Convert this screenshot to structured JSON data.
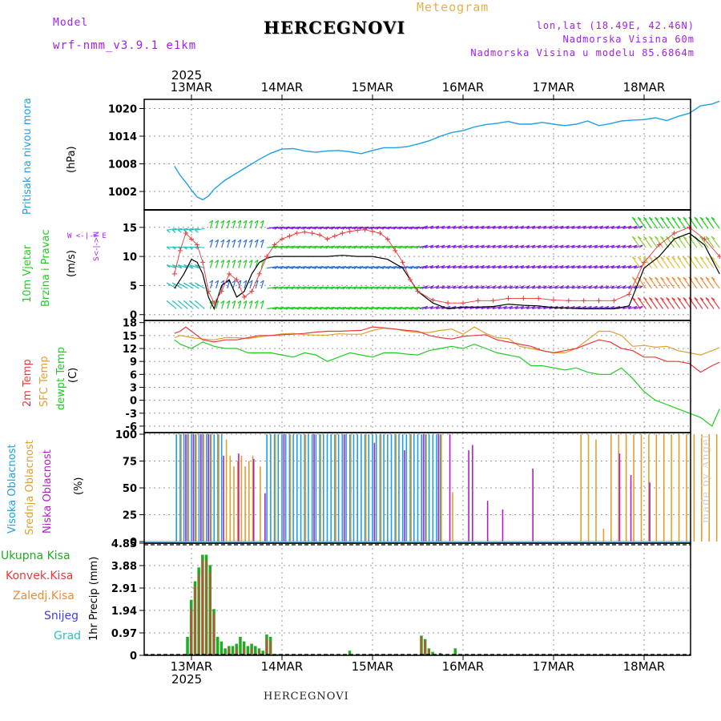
{
  "header": {
    "model_label": "Model",
    "model_name": "wrf-nmm_v3.9.1 e1km",
    "title": "Meteogram",
    "station": "HERCEGNOVI",
    "lonlat": "lon,lat (18.49E, 42.46N)",
    "elevation": "Nadmorska Visina 60m",
    "model_elevation": "Nadmorska Visina u modelu 85.6864m"
  },
  "footer": {
    "station": "HERCEGNOVI",
    "watermark": "made by Angel"
  },
  "dates": {
    "year": "2025",
    "labels": [
      "13MAR",
      "14MAR",
      "15MAR",
      "16MAR",
      "17MAR",
      "18MAR"
    ]
  },
  "colors": {
    "pressure": "#1ea0e6",
    "t2m": "#e83a3a",
    "tsfc": "#e0a030",
    "dewpt": "#22cc22",
    "wind_speed": "#000000",
    "gust": "#e83a3a",
    "cloud_high": "#1ea0e6",
    "cloud_mid": "#e0a030",
    "cloud_low": "#b020c0",
    "precip_total": "#22aa22",
    "precip_conv": "#e83a3a",
    "precip_frz": "#f08a30",
    "precip_snow": "#4040e0",
    "precip_hail": "#30c0c0"
  },
  "panels": {
    "pressure": {
      "label1": "Pritisak na nivou mora",
      "unit": "(hPa)",
      "ticks": [
        "1002",
        "1008",
        "1014",
        "1020"
      ]
    },
    "wind": {
      "label1": "10m Vjetar",
      "label2": "Brzina i Pravac",
      "unit": "(m/s)",
      "ticks": [
        "0",
        "5",
        "10",
        "15"
      ],
      "compass": "W <-|-> E",
      "compass_v": "S<-|->N"
    },
    "temp": {
      "label1": "2m Temp",
      "label2": "SFC Temp",
      "label3": "dewpt Temp",
      "unit": "(C)",
      "ticks": [
        "-6",
        "-3",
        "0",
        "3",
        "6",
        "9",
        "12",
        "15",
        "18"
      ]
    },
    "cloud": {
      "label1": "Visoka Oblacnost",
      "label2": "Srednja Oblacnost",
      "label3": "Niska Oblacnost",
      "unit": "(%)",
      "ticks": [
        "0",
        "25",
        "50",
        "75",
        "100"
      ]
    },
    "precip": {
      "label": "1hr Precip (mm)",
      "ticks": [
        "0",
        "0.97",
        "1.94",
        "2.91",
        "3.88",
        "4.85"
      ],
      "legend": [
        "Ukupna Kisa",
        "Konvek.Kisa",
        "Zaledj.Kisa",
        "Snijeg",
        "Grad"
      ]
    }
  },
  "chart_data": [
    {
      "type": "line",
      "name": "pressure",
      "x_unit": "hours from 13MAR 00",
      "ylim": [
        998,
        1022
      ],
      "x": [
        -4.5,
        -3,
        -1.5,
        0,
        1.5,
        3,
        4.5,
        6,
        9,
        12,
        15,
        18,
        21,
        24,
        27,
        30,
        33,
        36,
        39,
        42,
        45,
        48,
        51,
        54,
        57,
        60,
        63,
        66,
        69,
        72,
        75,
        78,
        81,
        84,
        87,
        90,
        93,
        96,
        99,
        102,
        105,
        108,
        111,
        114,
        117,
        120,
        123,
        126,
        129,
        132,
        135,
        138,
        140
      ],
      "values": [
        1007.5,
        1005.5,
        1004,
        1002.3,
        1000.8,
        1000.2,
        1001,
        1002.5,
        1004.5,
        1006,
        1007.5,
        1009,
        1010.3,
        1011.2,
        1011.3,
        1010.8,
        1010.5,
        1010.8,
        1010.9,
        1010.6,
        1010.2,
        1010.9,
        1011.5,
        1011.5,
        1011.7,
        1012.3,
        1013,
        1014,
        1014.8,
        1015.2,
        1016,
        1016.5,
        1016.8,
        1017.2,
        1016.6,
        1016.6,
        1017,
        1016.6,
        1016.3,
        1016.6,
        1017.3,
        1016.3,
        1016.7,
        1017.3,
        1017.5,
        1017.6,
        1018,
        1017.4,
        1018.3,
        1019,
        1020.6,
        1021,
        1021.6
      ]
    },
    {
      "type": "line",
      "name": "wind",
      "ylim": [
        -1,
        18
      ],
      "series": [
        {
          "name": "speed",
          "x": [
            -4.5,
            -2,
            0,
            1.5,
            3,
            4.5,
            6,
            8,
            10,
            12,
            14,
            16,
            18,
            20,
            22,
            24,
            28,
            32,
            36,
            40,
            44,
            48,
            52,
            56,
            60,
            64,
            68,
            72,
            76,
            80,
            84,
            88,
            92,
            96,
            100,
            104,
            108,
            112,
            116,
            120,
            124,
            128,
            132,
            136,
            140
          ],
          "values": [
            4.5,
            7,
            9.5,
            9,
            7,
            3,
            1,
            5,
            6,
            3,
            4,
            7,
            9,
            9.7,
            10,
            10,
            10,
            10,
            10,
            10.2,
            10,
            10,
            9.5,
            8,
            4,
            2,
            1,
            1.3,
            1.3,
            1.4,
            1.8,
            1.6,
            1.5,
            1.2,
            1.1,
            1,
            1,
            1,
            1.5,
            8,
            10,
            13,
            14,
            12,
            7
          ]
        },
        {
          "name": "gust",
          "x": [
            -4.5,
            -3,
            -1.5,
            0,
            1.5,
            3,
            4.5,
            6,
            8,
            10,
            12,
            14,
            16,
            18,
            20,
            22,
            24,
            26,
            28,
            30,
            32,
            34,
            36,
            38,
            40,
            42,
            44,
            46,
            48,
            50,
            52,
            54,
            56,
            58,
            60,
            64,
            68,
            72,
            76,
            80,
            84,
            88,
            92,
            96,
            100,
            104,
            108,
            112,
            116,
            120,
            124,
            128,
            132,
            136,
            140
          ],
          "values": [
            7,
            11,
            14,
            13,
            12,
            9,
            4,
            2,
            4,
            7,
            6,
            3,
            4,
            7,
            10,
            12,
            13,
            13.5,
            14,
            14.2,
            14,
            13.7,
            13,
            13.5,
            14,
            14.3,
            14.5,
            14.6,
            14.3,
            14,
            13,
            11,
            9,
            6,
            4,
            2.5,
            2,
            2,
            2.4,
            2.4,
            2.8,
            2.8,
            2.8,
            2.5,
            2.4,
            2.4,
            2.4,
            2.4,
            3.5,
            9,
            12,
            14,
            15,
            13,
            10
          ]
        }
      ]
    },
    {
      "type": "line",
      "name": "temperature",
      "ylim": [
        -7.5,
        18.5
      ],
      "series": [
        {
          "name": "t2m",
          "x": [
            -4.5,
            -3,
            -1.5,
            0,
            3,
            6,
            9,
            12,
            15,
            18,
            21,
            24,
            27,
            30,
            33,
            36,
            39,
            42,
            45,
            48,
            51,
            54,
            57,
            60,
            63,
            66,
            69,
            72,
            75,
            78,
            81,
            84,
            87,
            90,
            93,
            96,
            99,
            102,
            105,
            108,
            111,
            114,
            117,
            120,
            123,
            126,
            129,
            132,
            135,
            138,
            140
          ],
          "values": [
            15.5,
            16,
            17,
            16,
            14,
            13.5,
            14,
            14,
            14.5,
            15,
            15,
            15.2,
            15.3,
            15.5,
            15.8,
            16,
            16,
            16.1,
            16.2,
            17,
            16.8,
            16.5,
            16.2,
            16,
            15,
            14.5,
            14.2,
            14.8,
            15,
            15.2,
            14,
            13.5,
            13,
            12.5,
            11.5,
            11,
            11.5,
            12,
            13,
            14,
            13.5,
            12,
            11.5,
            10,
            10,
            9,
            9,
            8.5,
            6.5,
            8,
            8.8
          ]
        },
        {
          "name": "tsfc",
          "x": [
            -4.5,
            -3,
            -1.5,
            0,
            3,
            6,
            9,
            12,
            15,
            18,
            21,
            24,
            27,
            30,
            33,
            36,
            39,
            42,
            45,
            48,
            51,
            54,
            57,
            60,
            63,
            66,
            69,
            72,
            75,
            78,
            81,
            84,
            87,
            90,
            93,
            96,
            99,
            102,
            105,
            108,
            111,
            114,
            117,
            120,
            123,
            126,
            129,
            132,
            135,
            138,
            140
          ],
          "values": [
            14.5,
            15,
            14.8,
            14.5,
            14.2,
            14,
            14.5,
            14.5,
            14.3,
            14.7,
            15,
            15.4,
            15.5,
            15.2,
            15.1,
            15.1,
            15.4,
            15.3,
            15.3,
            16.2,
            16.7,
            16.5,
            16,
            15.7,
            15.7,
            16.2,
            16.5,
            15.3,
            17,
            15.5,
            14.5,
            14.3,
            12.5,
            12,
            11.5,
            11,
            11,
            12,
            14,
            16,
            16,
            15,
            12.5,
            12.7,
            12.3,
            12.5,
            11.5,
            11,
            10.5,
            11.5,
            12.2
          ]
        },
        {
          "name": "dewpt",
          "x": [
            -4.5,
            -3,
            -1.5,
            0,
            3,
            6,
            9,
            12,
            15,
            18,
            21,
            24,
            27,
            30,
            33,
            36,
            39,
            42,
            45,
            48,
            51,
            54,
            57,
            60,
            63,
            66,
            69,
            72,
            75,
            78,
            81,
            84,
            87,
            90,
            93,
            96,
            99,
            102,
            105,
            108,
            111,
            114,
            117,
            120,
            123,
            126,
            129,
            132,
            135,
            138,
            140
          ],
          "values": [
            14,
            13,
            12.5,
            12,
            13.5,
            12.5,
            12,
            12,
            11,
            11,
            11,
            10.5,
            10,
            11,
            10.5,
            9,
            10,
            11,
            10.5,
            10,
            11,
            11,
            10.7,
            10.5,
            11.5,
            12,
            12.5,
            12,
            13,
            12,
            11,
            10.5,
            10,
            8,
            8,
            7.5,
            7,
            7.5,
            6.5,
            6,
            6,
            7.5,
            5,
            2,
            0,
            -1,
            -2,
            -3,
            -4,
            -6,
            -2
          ]
        }
      ]
    },
    {
      "type": "bar",
      "name": "cloud",
      "ylim": [
        0,
        100
      ],
      "series": [
        {
          "name": "high",
          "x": [
            -4,
            -3,
            -2,
            -1,
            0,
            1,
            2,
            3,
            4,
            5,
            6,
            7,
            8,
            20,
            21,
            22,
            23,
            24,
            25,
            26,
            27,
            28,
            29,
            30,
            31,
            32,
            33,
            34,
            35,
            36,
            37,
            38,
            39,
            40,
            41,
            42,
            43,
            44,
            45,
            46,
            47,
            48,
            49,
            50,
            51,
            52,
            53,
            54,
            55,
            56,
            57,
            58,
            59,
            60,
            61,
            62,
            63,
            64,
            65,
            66
          ],
          "values": [
            100,
            100,
            100,
            100,
            100,
            100,
            100,
            100,
            100,
            100,
            100,
            100,
            100,
            100,
            100,
            100,
            100,
            100,
            100,
            100,
            100,
            100,
            100,
            100,
            100,
            100,
            100,
            100,
            100,
            100,
            100,
            100,
            100,
            100,
            100,
            100,
            100,
            100,
            100,
            100,
            100,
            100,
            100,
            100,
            100,
            100,
            100,
            100,
            100,
            100,
            100,
            100,
            100,
            100,
            100,
            100,
            100,
            100,
            100,
            100
          ]
        },
        {
          "name": "mid",
          "x": [
            -3,
            -1,
            1,
            3,
            5,
            7,
            9,
            10,
            11,
            12,
            13,
            14,
            15,
            16,
            18,
            22,
            26,
            30,
            34,
            38,
            42,
            46,
            50,
            54,
            58,
            62,
            66,
            69,
            103,
            105,
            107,
            109,
            111,
            113,
            115,
            117,
            119,
            121,
            123,
            125,
            127,
            129,
            131,
            133,
            135,
            137,
            139
          ],
          "values": [
            100,
            100,
            100,
            100,
            100,
            100,
            95,
            80,
            70,
            75,
            80,
            70,
            75,
            80,
            70,
            100,
            100,
            100,
            100,
            100,
            100,
            100,
            100,
            100,
            100,
            100,
            100,
            46,
            100,
            100,
            95,
            12,
            100,
            100,
            100,
            100,
            100,
            100,
            100,
            100,
            100,
            100,
            100,
            100,
            100,
            100,
            100
          ]
        },
        {
          "name": "low",
          "x": [
            -2,
            0,
            2,
            4,
            8,
            12,
            16,
            19,
            24,
            32,
            40,
            48,
            56,
            61,
            65,
            68,
            73,
            74,
            78,
            82,
            90,
            113,
            116,
            121
          ],
          "values": [
            100,
            100,
            100,
            100,
            80,
            82,
            77,
            45,
            100,
            100,
            100,
            92,
            85,
            100,
            100,
            100,
            85,
            90,
            38,
            30,
            68,
            82,
            62,
            55
          ]
        }
      ]
    },
    {
      "type": "bar",
      "name": "precip",
      "ylim": [
        0,
        4.85
      ],
      "series": [
        {
          "name": "total",
          "x": [
            -1,
            0,
            1,
            2,
            3,
            4,
            5,
            6,
            7,
            8,
            9,
            10,
            11,
            12,
            13,
            14,
            15,
            16,
            17,
            18,
            19,
            20,
            21,
            22,
            23,
            24,
            30,
            36,
            42,
            48,
            54,
            61,
            62,
            63,
            64,
            66,
            70,
            78
          ],
          "values": [
            0.8,
            2.4,
            3.2,
            3.8,
            4.35,
            4.35,
            3.9,
            2.0,
            0.8,
            0.6,
            0.3,
            0.4,
            0.4,
            0.5,
            0.8,
            0.6,
            0.4,
            0.5,
            0.4,
            0.3,
            0.2,
            0.9,
            0.8,
            0.05,
            0.05,
            0.05,
            0.03,
            0.05,
            0.2,
            0.03,
            0.05,
            0.85,
            0.7,
            0.3,
            0.15,
            0.1,
            0.3,
            0.05
          ]
        },
        {
          "name": "conv",
          "x": [
            0,
            1,
            2,
            3,
            4,
            5,
            6,
            10,
            12,
            14,
            16,
            18,
            20,
            21,
            61,
            62,
            63
          ],
          "values": [
            2.0,
            3.0,
            3.5,
            4.1,
            4.1,
            3.6,
            1.8,
            0.3,
            0.3,
            0.3,
            0.3,
            0.2,
            0.7,
            0.6,
            0.8,
            0.6,
            0.25
          ]
        }
      ]
    }
  ]
}
